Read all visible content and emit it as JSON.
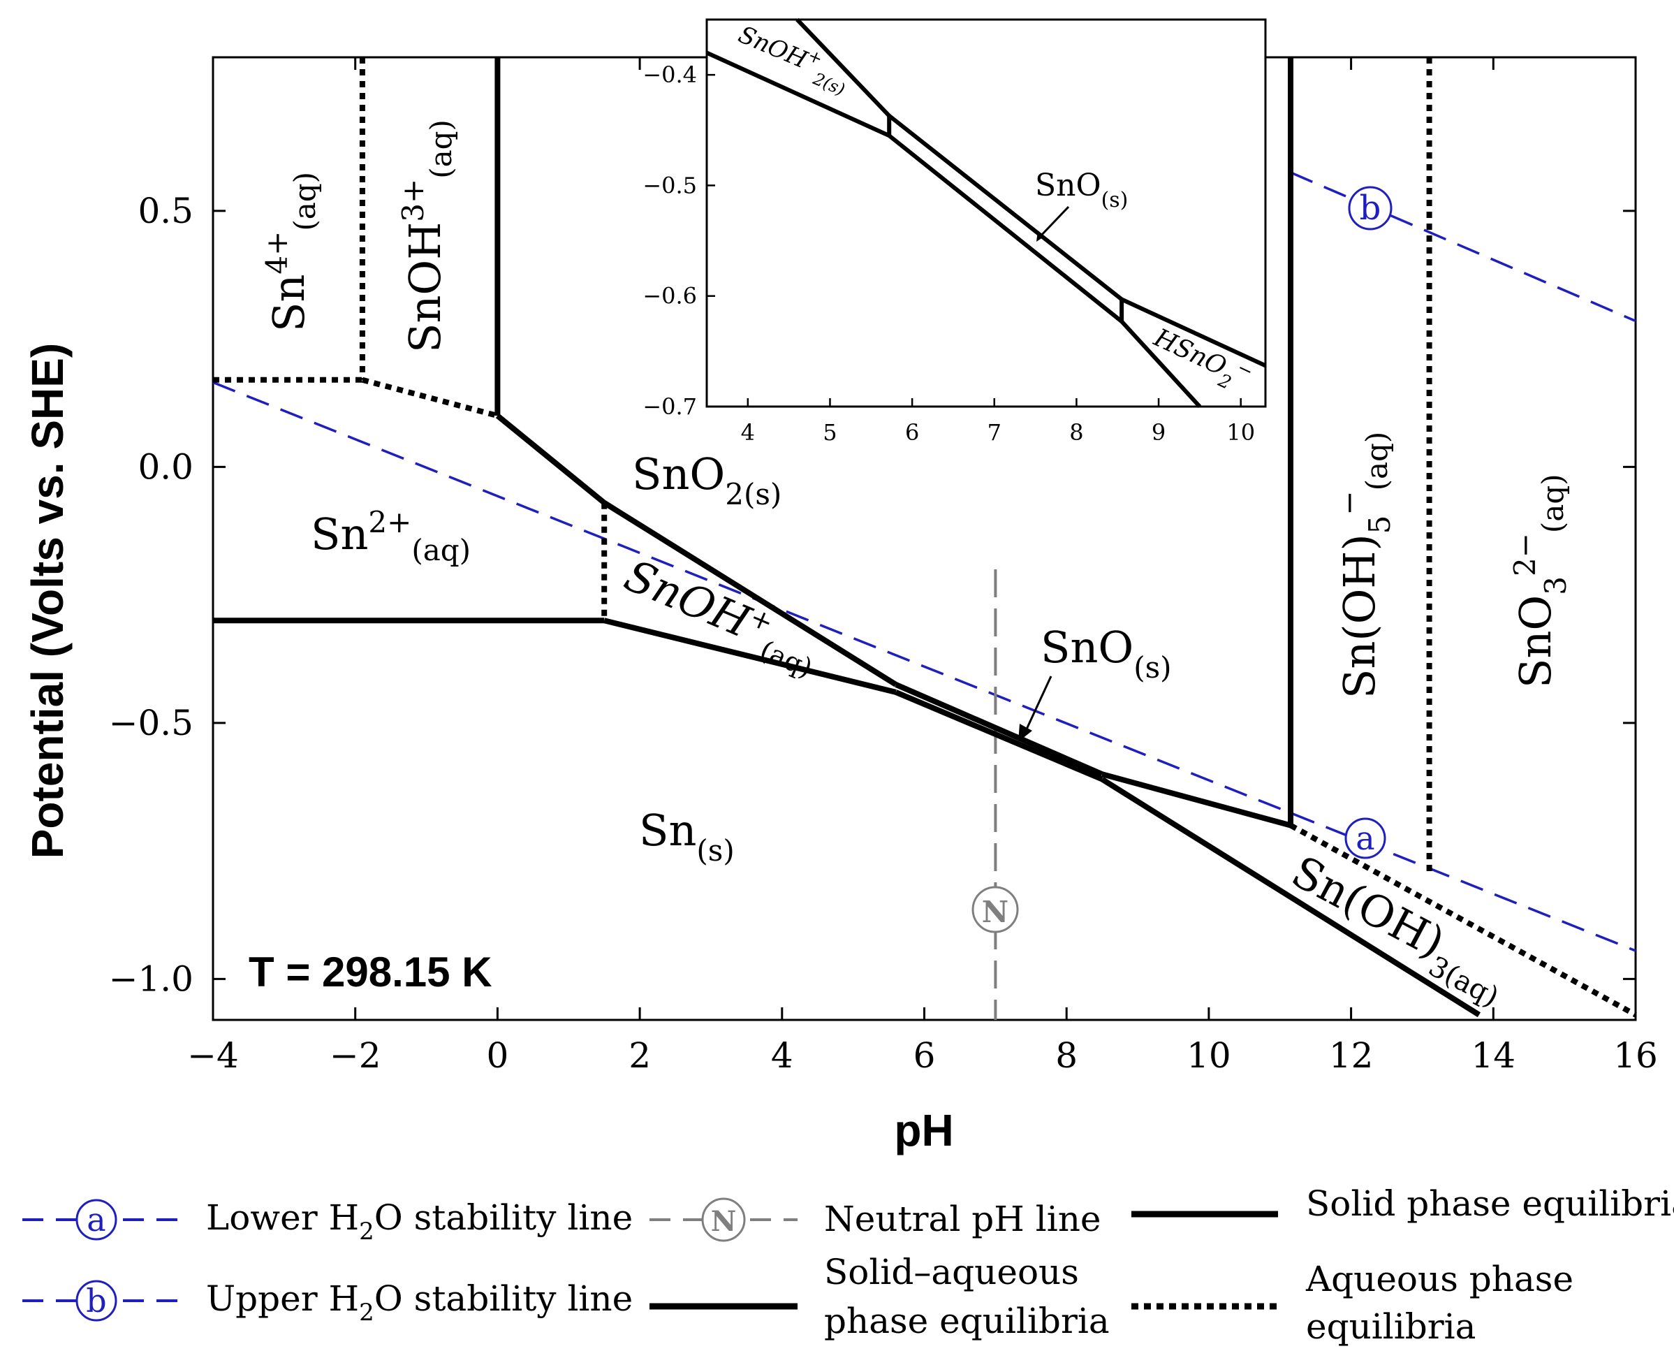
{
  "chart_data": {
    "type": "line",
    "title": "",
    "xlabel": "pH",
    "ylabel": "Potential (Volts vs. SHE)",
    "xlim": [
      -4,
      16
    ],
    "ylim": [
      -1.08,
      0.8
    ],
    "xticks": [
      -4,
      -2,
      0,
      2,
      4,
      6,
      8,
      10,
      12,
      14,
      16
    ],
    "yticks": [
      0.5,
      0.0,
      -0.5,
      -1.0
    ],
    "xtick_labels": [
      "−4",
      "−2",
      "0",
      "2",
      "4",
      "6",
      "8",
      "10",
      "12",
      "14",
      "16"
    ],
    "ytick_labels": [
      "0.5",
      "0.0",
      "−0.5",
      "−1.0"
    ],
    "temperature_label": "T = 298.15 K",
    "series": [
      {
        "name": "Sn2+/Sn(s)",
        "style": "solid-aqueous",
        "x": [
          -4,
          1.5
        ],
        "y": [
          -0.3,
          -0.3
        ]
      },
      {
        "name": "Sn4+/SnOH3+",
        "style": "aqueous",
        "x": [
          -1.9,
          -1.9
        ],
        "y": [
          0.8,
          0.17
        ]
      },
      {
        "name": "Sn4+/Sn2+",
        "style": "aqueous",
        "x": [
          -4,
          -1.9
        ],
        "y": [
          0.17,
          0.17
        ]
      },
      {
        "name": "SnOH3+/Sn2+",
        "style": "aqueous",
        "x": [
          -1.9,
          0
        ],
        "y": [
          0.17,
          0.1
        ]
      },
      {
        "name": "SnOH3+/SnO2(s)",
        "style": "solid-aqueous",
        "x": [
          0,
          0
        ],
        "y": [
          0.8,
          0.1
        ]
      },
      {
        "name": "Sn2+/SnO2(s)",
        "style": "solid-aqueous",
        "x": [
          0,
          1.5
        ],
        "y": [
          0.1,
          -0.07
        ]
      },
      {
        "name": "Sn2+/SnOH+",
        "style": "aqueous",
        "x": [
          1.5,
          1.5
        ],
        "y": [
          -0.07,
          -0.3
        ]
      },
      {
        "name": "SnOH+/SnO2(s)",
        "style": "solid-aqueous",
        "x": [
          1.5,
          5.6
        ],
        "y": [
          -0.07,
          -0.425
        ]
      },
      {
        "name": "SnOH+/Sn(s)",
        "style": "solid-aqueous",
        "x": [
          1.5,
          5.6
        ],
        "y": [
          -0.3,
          -0.44
        ]
      },
      {
        "name": "SnO2(s)/SnO(s)",
        "style": "solid",
        "x": [
          5.6,
          8.5
        ],
        "y": [
          -0.425,
          -0.6
        ]
      },
      {
        "name": "SnO(s)/Sn(s)",
        "style": "solid",
        "x": [
          5.6,
          8.5
        ],
        "y": [
          -0.44,
          -0.61
        ]
      },
      {
        "name": "SnO2(s)/Sn(OH)3(aq)",
        "style": "solid-aqueous",
        "x": [
          8.5,
          11.15
        ],
        "y": [
          -0.6,
          -0.7
        ]
      },
      {
        "name": "Sn(OH)3(aq)/Sn(s)",
        "style": "solid-aqueous",
        "x": [
          8.5,
          13.8
        ],
        "y": [
          -0.61,
          -1.07
        ]
      },
      {
        "name": "SnO2(s)/Sn(OH)5-",
        "style": "solid-aqueous",
        "x": [
          11.15,
          11.15
        ],
        "y": [
          0.8,
          -0.7
        ]
      },
      {
        "name": "Sn(OH)5-/Sn(OH)3(aq)",
        "style": "aqueous",
        "x": [
          11.15,
          16
        ],
        "y": [
          -0.7,
          -1.07
        ]
      },
      {
        "name": "Sn(OH)5-/SnO3 2-",
        "style": "aqueous",
        "x": [
          13.1,
          13.1
        ],
        "y": [
          0.8,
          -0.79
        ]
      },
      {
        "name": "Lower H2O stability line (a)",
        "style": "water",
        "x": [
          -4,
          16
        ],
        "y": [
          0.165,
          -0.945
        ]
      },
      {
        "name": "Upper H2O stability line (b)",
        "style": "water",
        "x": [
          11.15,
          16
        ],
        "y": [
          0.575,
          0.285
        ]
      },
      {
        "name": "Neutral pH line (N)",
        "style": "neutral",
        "x": [
          7,
          7
        ],
        "y": [
          -0.2,
          -1.08
        ]
      }
    ],
    "inset": {
      "xlim": [
        3.5,
        10.3
      ],
      "ylim": [
        -0.7,
        -0.35
      ],
      "xticks": [
        4,
        5,
        6,
        7,
        8,
        9,
        10
      ],
      "yticks": [
        -0.4,
        -0.5,
        -0.6,
        -0.7
      ],
      "xtick_labels": [
        "4",
        "5",
        "6",
        "7",
        "8",
        "9",
        "10"
      ],
      "ytick_labels": [
        "−0.4",
        "−0.5",
        "−0.6",
        "−0.7"
      ],
      "series": [
        {
          "name": "SnOH+ upper",
          "x": [
            4.6,
            5.72
          ],
          "y": [
            -0.35,
            -0.437
          ]
        },
        {
          "name": "SnO2 boundary",
          "x": [
            5.72,
            8.55
          ],
          "y": [
            -0.437,
            -0.603
          ]
        },
        {
          "name": "HSnO2- upper",
          "x": [
            8.55,
            10.3
          ],
          "y": [
            -0.603,
            -0.663
          ]
        },
        {
          "name": "SnOH+ lower",
          "x": [
            3.5,
            5.72
          ],
          "y": [
            -0.38,
            -0.455
          ]
        },
        {
          "name": "SnO lower",
          "x": [
            5.72,
            8.55
          ],
          "y": [
            -0.455,
            -0.623
          ]
        },
        {
          "name": "HSnO2- lower",
          "x": [
            8.55,
            9.5
          ],
          "y": [
            -0.623,
            -0.7
          ]
        },
        {
          "name": "SnOH+ cap",
          "x": [
            5.72,
            5.72
          ],
          "y": [
            -0.437,
            -0.455
          ]
        },
        {
          "name": "HSnO2 cap",
          "x": [
            8.55,
            8.55
          ],
          "y": [
            -0.603,
            -0.623
          ]
        }
      ]
    }
  },
  "regions": {
    "sn4": {
      "base": "Sn",
      "sup": "4+",
      "sub": "(aq)"
    },
    "snoh3": {
      "base": "SnOH",
      "sup": "3+",
      "sub": "(aq)"
    },
    "sn2": {
      "base": "Sn",
      "sup": "2+",
      "sub": "(aq)"
    },
    "sno2": {
      "base": "SnO",
      "sub": "2(s)"
    },
    "snoh": {
      "base": "SnOH",
      "sup": "+",
      "sub": "(aq)"
    },
    "sno": {
      "base": "SnO",
      "sub": "(s)"
    },
    "sn": {
      "base": "Sn",
      "sub": "(s)"
    },
    "snoh5": {
      "base": "Sn(OH)",
      "sub": "5",
      "sup": "−",
      "sub2": "(aq)"
    },
    "sno3": {
      "base": "SnO",
      "sub": "3",
      "sup": "2−",
      "sub2": "(aq)"
    },
    "snoh3aq": {
      "base": "Sn(OH)",
      "sub": "3(aq)"
    }
  },
  "inset_regions": {
    "snoh2": {
      "base": "SnOH",
      "sup": "+",
      "sub": "2(s)"
    },
    "sno": {
      "base": "SnO",
      "sub": "(s)"
    },
    "hsno2": {
      "base": "HSnO",
      "sub": "2",
      "sup": "−"
    }
  },
  "markers": {
    "a": "a",
    "b": "b",
    "n": "N"
  },
  "legend": {
    "lower_water_a": "Lower H",
    "lower_water_b": "O stability line",
    "upper_water_a": "Upper H",
    "upper_water_b": "O stability line",
    "water_sub": "2",
    "neutral": "Neutral pH line",
    "solid_aqueous_1": "Solid–aqueous",
    "solid_aqueous_2": "phase equilibria",
    "solid": "Solid phase equilibria",
    "aqueous_1": "Aqueous phase",
    "aqueous_2": "equilibria"
  },
  "colors": {
    "water": "#1f1fbf",
    "neutral": "#7f7f7f",
    "line": "#000000"
  }
}
